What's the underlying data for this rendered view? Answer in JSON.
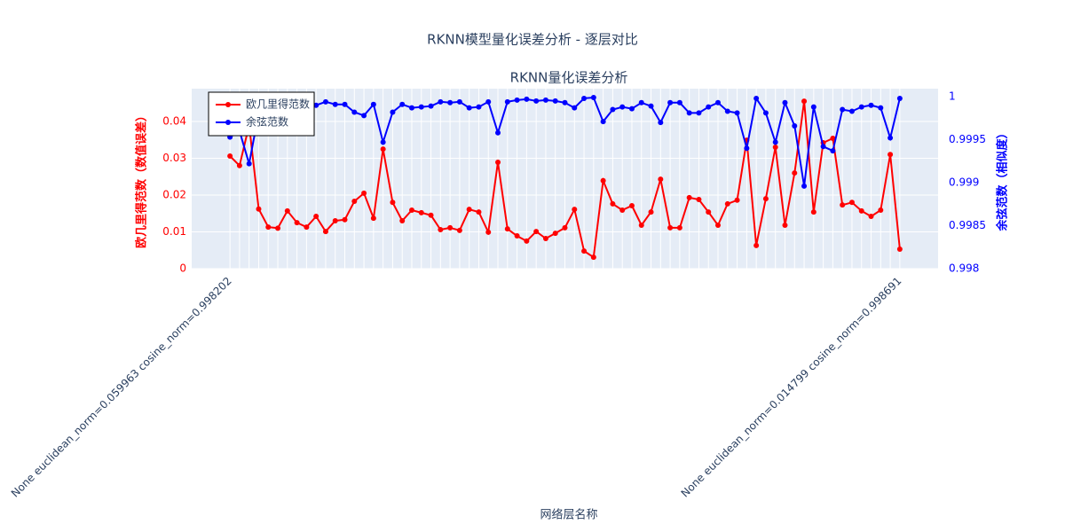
{
  "chart_data": {
    "type": "line",
    "title": "RKNN模型量化误差分析 - 逐层对比",
    "subtitle": "RKNN量化误差分析",
    "x_label": "网络层名称",
    "y_label": "欧几里得范数（数值误差）",
    "y2_label": "余弦范数（相似度）",
    "categories": [
      "None euclidean_norm=0.059963 cosine_norm=0.998202",
      null,
      null,
      null,
      null,
      null,
      null,
      null,
      null,
      null,
      null,
      null,
      null,
      null,
      null,
      null,
      null,
      null,
      null,
      null,
      null,
      null,
      null,
      null,
      null,
      null,
      null,
      null,
      null,
      null,
      null,
      null,
      null,
      null,
      null,
      null,
      null,
      null,
      null,
      null,
      null,
      null,
      null,
      null,
      null,
      null,
      null,
      null,
      null,
      null,
      null,
      null,
      null,
      null,
      null,
      null,
      null,
      null,
      null,
      null,
      null,
      null,
      null,
      null,
      null,
      null,
      null,
      null,
      null,
      null,
      "None euclidean_norm=0.014799 cosine_norm=0.998691"
    ],
    "series": [
      {
        "name": "欧几里得范数",
        "color": "#ff0000",
        "values": [
          0.0306,
          0.028,
          0.039,
          0.0162,
          0.0113,
          0.011,
          0.0157,
          0.0125,
          0.0113,
          0.0142,
          0.0101,
          0.013,
          0.0133,
          0.0183,
          0.0205,
          0.0137,
          0.0325,
          0.018,
          0.013,
          0.0159,
          0.0152,
          0.0145,
          0.0106,
          0.0111,
          0.0104,
          0.0161,
          0.0154,
          0.0099,
          0.0289,
          0.0108,
          0.0089,
          0.0075,
          0.0101,
          0.0082,
          0.0096,
          0.0111,
          0.0161,
          0.0048,
          0.0031,
          0.0239,
          0.0176,
          0.0159,
          0.0171,
          0.0118,
          0.0154,
          0.0243,
          0.0111,
          0.0111,
          0.0193,
          0.0188,
          0.0154,
          0.0118,
          0.0176,
          0.0186,
          0.0349,
          0.0063,
          0.019,
          0.033,
          0.0118,
          0.026,
          0.0455,
          0.0154,
          0.0342,
          0.0354,
          0.0173,
          0.018,
          0.0157,
          0.0142,
          0.0159,
          0.031,
          0.0053
        ]
      },
      {
        "name": "余弦范数",
        "color": "#0000ff",
        "axis": "y2",
        "values": [
          0.99953,
          0.9996,
          0.99922,
          0.99981,
          0.99983,
          0.99988,
          0.9999,
          0.99991,
          0.99991,
          0.9999,
          0.99994,
          0.99991,
          0.99991,
          0.99982,
          0.99978,
          0.99991,
          0.99947,
          0.99982,
          0.99991,
          0.99987,
          0.99988,
          0.99989,
          0.99994,
          0.99993,
          0.99994,
          0.99987,
          0.99988,
          0.99994,
          0.99958,
          0.99994,
          0.99996,
          0.99997,
          0.99995,
          0.99996,
          0.99995,
          0.99993,
          0.99987,
          0.99998,
          0.99999,
          0.99971,
          0.99985,
          0.99988,
          0.99986,
          0.99993,
          0.99989,
          0.9997,
          0.99993,
          0.99993,
          0.99981,
          0.99981,
          0.99988,
          0.99993,
          0.99983,
          0.99981,
          0.9994,
          0.99998,
          0.99981,
          0.99947,
          0.99993,
          0.99966,
          0.99896,
          0.99988,
          0.99942,
          0.99937,
          0.99985,
          0.99983,
          0.99988,
          0.9999,
          0.99987,
          0.99952,
          0.99998
        ]
      }
    ],
    "ylim": [
      0,
      0.0489
    ],
    "yticks": [
      0,
      0.01,
      0.02,
      0.03,
      0.04
    ],
    "y2lim": [
      0.998,
      1.0000928
    ],
    "y2ticks": [
      0.998,
      0.9985,
      0.999,
      0.9995,
      1
    ],
    "grid": true,
    "legend": "top-left"
  }
}
